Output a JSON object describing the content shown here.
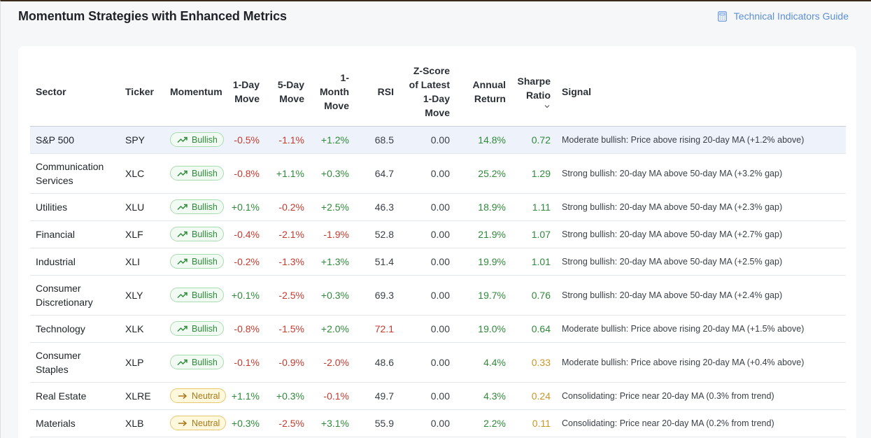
{
  "header": {
    "title": "Momentum Strategies with Enhanced Metrics",
    "guide_link": "Technical Indicators Guide",
    "guide_icon": "calculator-icon"
  },
  "table": {
    "columns": {
      "sector": "Sector",
      "ticker": "Ticker",
      "momentum": "Momentum",
      "day1": "1-Day Move",
      "day5": "5-Day Move",
      "month1": "1-Month Move",
      "rsi": "RSI",
      "zscore": "Z-Score of Latest 1-Day Move",
      "annual": "Annual Return",
      "sharpe": "Sharpe Ratio",
      "signal": "Signal"
    },
    "sort_icon": "chevron-down-icon",
    "colors": {
      "positive": "#2f8a3a",
      "negative": "#c63a2f",
      "warning": "#c9962a",
      "selected_row": "#eef3fb"
    },
    "rows": [
      {
        "sector": "S&P 500",
        "ticker": "SPY",
        "momentum": "Bullish",
        "day1": "-0.5%",
        "day5": "-1.1%",
        "month1": "+1.2%",
        "rsi": "68.5",
        "zscore": "0.00",
        "annual": "14.8%",
        "sharpe": "0.72",
        "signal": "Moderate bullish: Price above rising 20-day MA (+1.2% above)"
      },
      {
        "sector": "Communication Services",
        "ticker": "XLC",
        "momentum": "Bullish",
        "day1": "-0.8%",
        "day5": "+1.1%",
        "month1": "+0.3%",
        "rsi": "64.7",
        "zscore": "0.00",
        "annual": "25.2%",
        "sharpe": "1.29",
        "signal": "Strong bullish: 20-day MA above 50-day MA (+3.2% gap)"
      },
      {
        "sector": "Utilities",
        "ticker": "XLU",
        "momentum": "Bullish",
        "day1": "+0.1%",
        "day5": "-0.2%",
        "month1": "+2.5%",
        "rsi": "46.3",
        "zscore": "0.00",
        "annual": "18.9%",
        "sharpe": "1.11",
        "signal": "Strong bullish: 20-day MA above 50-day MA (+2.3% gap)"
      },
      {
        "sector": "Financial",
        "ticker": "XLF",
        "momentum": "Bullish",
        "day1": "-0.4%",
        "day5": "-2.1%",
        "month1": "-1.9%",
        "rsi": "52.8",
        "zscore": "0.00",
        "annual": "21.9%",
        "sharpe": "1.07",
        "signal": "Strong bullish: 20-day MA above 50-day MA (+2.7% gap)"
      },
      {
        "sector": "Industrial",
        "ticker": "XLI",
        "momentum": "Bullish",
        "day1": "-0.2%",
        "day5": "-1.3%",
        "month1": "+1.3%",
        "rsi": "51.4",
        "zscore": "0.00",
        "annual": "19.9%",
        "sharpe": "1.01",
        "signal": "Strong bullish: 20-day MA above 50-day MA (+2.5% gap)"
      },
      {
        "sector": "Consumer Discretionary",
        "ticker": "XLY",
        "momentum": "Bullish",
        "day1": "+0.1%",
        "day5": "-2.5%",
        "month1": "+0.3%",
        "rsi": "69.3",
        "zscore": "0.00",
        "annual": "19.7%",
        "sharpe": "0.76",
        "signal": "Strong bullish: 20-day MA above 50-day MA (+2.4% gap)"
      },
      {
        "sector": "Technology",
        "ticker": "XLK",
        "momentum": "Bullish",
        "day1": "-0.8%",
        "day5": "-1.5%",
        "month1": "+2.0%",
        "rsi": "72.1",
        "zscore": "0.00",
        "annual": "19.0%",
        "sharpe": "0.64",
        "signal": "Moderate bullish: Price above rising 20-day MA (+1.5% above)"
      },
      {
        "sector": "Consumer Staples",
        "ticker": "XLP",
        "momentum": "Bullish",
        "day1": "-0.1%",
        "day5": "-0.9%",
        "month1": "-2.0%",
        "rsi": "48.6",
        "zscore": "0.00",
        "annual": "4.4%",
        "sharpe": "0.33",
        "signal": "Moderate bullish: Price above rising 20-day MA (+0.4% above)"
      },
      {
        "sector": "Real Estate",
        "ticker": "XLRE",
        "momentum": "Neutral",
        "day1": "+1.1%",
        "day5": "+0.3%",
        "month1": "-0.1%",
        "rsi": "49.7",
        "zscore": "0.00",
        "annual": "4.3%",
        "sharpe": "0.24",
        "signal": "Consolidating: Price near 20-day MA (0.3% from trend)"
      },
      {
        "sector": "Materials",
        "ticker": "XLB",
        "momentum": "Neutral",
        "day1": "+0.3%",
        "day5": "-2.5%",
        "month1": "+3.1%",
        "rsi": "55.9",
        "zscore": "0.00",
        "annual": "2.2%",
        "sharpe": "0.11",
        "signal": "Consolidating: Price near 20-day MA (0.2% from trend)"
      }
    ]
  }
}
